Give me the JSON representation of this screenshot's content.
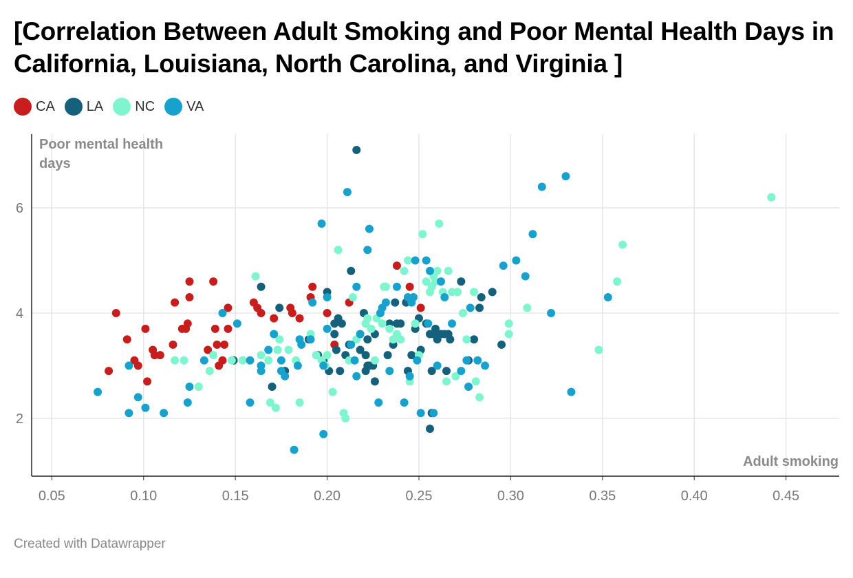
{
  "title": "[Correlation Between Adult Smoking and Poor Mental Health Days in California, Louisiana, North Carolina, and Virginia  ]",
  "footer": "Created with Datawrapper",
  "legend": [
    {
      "label": "CA",
      "color": "#c71e1d"
    },
    {
      "label": "LA",
      "color": "#15607a"
    },
    {
      "label": "NC",
      "color": "#7ff5cf"
    },
    {
      "label": "VA",
      "color": "#18a1cd"
    }
  ],
  "chart_data": {
    "type": "scatter",
    "xlabel": "Adult smoking",
    "ylabel": "Poor mental health days",
    "ylabel_lines": [
      "Poor mental health",
      "days"
    ],
    "xlim": [
      0.039,
      0.479
    ],
    "ylim": [
      0.9,
      7.4
    ],
    "xticks": [
      "0.05",
      "0.10",
      "0.15",
      "0.20",
      "0.25",
      "0.30",
      "0.35",
      "0.40",
      "0.45"
    ],
    "yticks": [
      "2",
      "4",
      "6"
    ],
    "grid": true,
    "legend_position": "top-left",
    "series": [
      {
        "name": "CA",
        "color": "#c71e1d",
        "points": [
          [
            0.081,
            2.9
          ],
          [
            0.085,
            4.0
          ],
          [
            0.091,
            3.5
          ],
          [
            0.095,
            3.1
          ],
          [
            0.097,
            3.0
          ],
          [
            0.101,
            3.7
          ],
          [
            0.102,
            2.7
          ],
          [
            0.105,
            3.3
          ],
          [
            0.106,
            3.2
          ],
          [
            0.109,
            3.2
          ],
          [
            0.116,
            3.4
          ],
          [
            0.117,
            4.2
          ],
          [
            0.121,
            3.7
          ],
          [
            0.123,
            3.7
          ],
          [
            0.124,
            3.8
          ],
          [
            0.125,
            4.3
          ],
          [
            0.125,
            4.6
          ],
          [
            0.135,
            3.3
          ],
          [
            0.138,
            4.6
          ],
          [
            0.139,
            3.7
          ],
          [
            0.14,
            3.4
          ],
          [
            0.141,
            3.0
          ],
          [
            0.143,
            3.1
          ],
          [
            0.144,
            3.4
          ],
          [
            0.146,
            4.1
          ],
          [
            0.146,
            3.7
          ],
          [
            0.149,
            3.1
          ],
          [
            0.16,
            4.2
          ],
          [
            0.162,
            4.1
          ],
          [
            0.164,
            4.0
          ],
          [
            0.171,
            3.9
          ],
          [
            0.18,
            4.1
          ],
          [
            0.181,
            4.0
          ],
          [
            0.185,
            3.9
          ],
          [
            0.191,
            4.3
          ],
          [
            0.192,
            4.5
          ],
          [
            0.2,
            4.0
          ],
          [
            0.204,
            3.4
          ],
          [
            0.212,
            4.2
          ],
          [
            0.238,
            4.9
          ],
          [
            0.245,
            4.5
          ],
          [
            0.251,
            4.1
          ]
        ]
      },
      {
        "name": "LA",
        "color": "#15607a",
        "points": [
          [
            0.149,
            3.1
          ],
          [
            0.164,
            4.5
          ],
          [
            0.17,
            2.6
          ],
          [
            0.174,
            4.1
          ],
          [
            0.177,
            2.9
          ],
          [
            0.19,
            3.5
          ],
          [
            0.195,
            3.2
          ],
          [
            0.198,
            3.1
          ],
          [
            0.2,
            4.4
          ],
          [
            0.201,
            2.9
          ],
          [
            0.204,
            3.6
          ],
          [
            0.205,
            3.3
          ],
          [
            0.206,
            3.9
          ],
          [
            0.207,
            2.9
          ],
          [
            0.208,
            3.8
          ],
          [
            0.21,
            3.2
          ],
          [
            0.212,
            3.4
          ],
          [
            0.213,
            4.8
          ],
          [
            0.216,
            7.1
          ],
          [
            0.218,
            3.3
          ],
          [
            0.22,
            4.0
          ],
          [
            0.221,
            2.9
          ],
          [
            0.222,
            3.5
          ],
          [
            0.223,
            3.0
          ],
          [
            0.225,
            3.0
          ],
          [
            0.226,
            3.6
          ],
          [
            0.226,
            2.7
          ],
          [
            0.233,
            3.2
          ],
          [
            0.234,
            3.8
          ],
          [
            0.236,
            3.4
          ],
          [
            0.237,
            4.2
          ],
          [
            0.238,
            3.8
          ],
          [
            0.24,
            3.8
          ],
          [
            0.244,
            2.9
          ],
          [
            0.246,
            3.2
          ],
          [
            0.248,
            3.7
          ],
          [
            0.25,
            3.9
          ],
          [
            0.251,
            3.3
          ],
          [
            0.254,
            3.8
          ],
          [
            0.256,
            1.8
          ],
          [
            0.256,
            3.6
          ],
          [
            0.257,
            2.9
          ],
          [
            0.258,
            3.6
          ],
          [
            0.259,
            3.7
          ],
          [
            0.26,
            3.5
          ],
          [
            0.262,
            3.6
          ],
          [
            0.264,
            3.6
          ],
          [
            0.266,
            3.6
          ],
          [
            0.265,
            2.9
          ],
          [
            0.267,
            3.5
          ],
          [
            0.273,
            4.6
          ],
          [
            0.277,
            3.1
          ],
          [
            0.28,
            3.5
          ],
          [
            0.283,
            4.1
          ],
          [
            0.284,
            4.3
          ],
          [
            0.29,
            4.4
          ],
          [
            0.295,
            3.4
          ],
          [
            0.257,
            2.1
          ],
          [
            0.243,
            4.2
          ],
          [
            0.222,
            3.0
          ],
          [
            0.221,
            3.2
          ],
          [
            0.204,
            3.8
          ]
        ]
      },
      {
        "name": "NC",
        "color": "#7ff5cf",
        "points": [
          [
            0.117,
            3.1
          ],
          [
            0.122,
            3.1
          ],
          [
            0.13,
            2.6
          ],
          [
            0.136,
            2.9
          ],
          [
            0.138,
            3.2
          ],
          [
            0.148,
            3.1
          ],
          [
            0.154,
            3.1
          ],
          [
            0.161,
            4.7
          ],
          [
            0.164,
            3.2
          ],
          [
            0.168,
            3.1
          ],
          [
            0.169,
            2.3
          ],
          [
            0.172,
            2.2
          ],
          [
            0.173,
            3.3
          ],
          [
            0.174,
            3.5
          ],
          [
            0.179,
            3.3
          ],
          [
            0.183,
            3.1
          ],
          [
            0.185,
            2.3
          ],
          [
            0.186,
            3.4
          ],
          [
            0.191,
            3.6
          ],
          [
            0.194,
            3.2
          ],
          [
            0.197,
            3.1
          ],
          [
            0.199,
            3.0
          ],
          [
            0.2,
            3.2
          ],
          [
            0.203,
            2.5
          ],
          [
            0.206,
            5.2
          ],
          [
            0.209,
            2.1
          ],
          [
            0.21,
            2.0
          ],
          [
            0.212,
            3.1
          ],
          [
            0.214,
            4.3
          ],
          [
            0.216,
            3.5
          ],
          [
            0.218,
            3.6
          ],
          [
            0.221,
            3.8
          ],
          [
            0.222,
            3.9
          ],
          [
            0.224,
            3.7
          ],
          [
            0.226,
            3.1
          ],
          [
            0.227,
            3.9
          ],
          [
            0.23,
            3.8
          ],
          [
            0.231,
            4.5
          ],
          [
            0.232,
            4.5
          ],
          [
            0.234,
            3.7
          ],
          [
            0.236,
            3.5
          ],
          [
            0.238,
            3.6
          ],
          [
            0.24,
            3.5
          ],
          [
            0.242,
            4.8
          ],
          [
            0.244,
            5.0
          ],
          [
            0.245,
            2.7
          ],
          [
            0.247,
            4.3
          ],
          [
            0.248,
            3.8
          ],
          [
            0.25,
            3.2
          ],
          [
            0.252,
            5.5
          ],
          [
            0.254,
            4.6
          ],
          [
            0.256,
            4.4
          ],
          [
            0.257,
            4.5
          ],
          [
            0.258,
            4.7
          ],
          [
            0.259,
            4.6
          ],
          [
            0.26,
            4.8
          ],
          [
            0.261,
            5.7
          ],
          [
            0.263,
            4.4
          ],
          [
            0.265,
            2.7
          ],
          [
            0.266,
            4.8
          ],
          [
            0.268,
            4.4
          ],
          [
            0.27,
            2.8
          ],
          [
            0.271,
            4.4
          ],
          [
            0.274,
            4.0
          ],
          [
            0.276,
            3.5
          ],
          [
            0.28,
            4.4
          ],
          [
            0.281,
            2.7
          ],
          [
            0.283,
            2.4
          ],
          [
            0.299,
            3.8
          ],
          [
            0.299,
            3.6
          ],
          [
            0.309,
            4.1
          ],
          [
            0.348,
            3.3
          ],
          [
            0.358,
            4.6
          ],
          [
            0.361,
            5.3
          ],
          [
            0.442,
            6.2
          ]
        ]
      },
      {
        "name": "VA",
        "color": "#18a1cd",
        "points": [
          [
            0.075,
            2.5
          ],
          [
            0.092,
            3.0
          ],
          [
            0.092,
            2.1
          ],
          [
            0.097,
            2.4
          ],
          [
            0.101,
            2.2
          ],
          [
            0.111,
            2.1
          ],
          [
            0.124,
            2.3
          ],
          [
            0.125,
            2.6
          ],
          [
            0.133,
            3.1
          ],
          [
            0.143,
            4.0
          ],
          [
            0.151,
            3.8
          ],
          [
            0.158,
            2.3
          ],
          [
            0.158,
            3.1
          ],
          [
            0.164,
            3.0
          ],
          [
            0.164,
            2.9
          ],
          [
            0.168,
            3.3
          ],
          [
            0.171,
            3.6
          ],
          [
            0.175,
            2.9
          ],
          [
            0.175,
            3.1
          ],
          [
            0.177,
            2.8
          ],
          [
            0.182,
            1.4
          ],
          [
            0.184,
            3.0
          ],
          [
            0.185,
            3.5
          ],
          [
            0.186,
            3.4
          ],
          [
            0.191,
            3.5
          ],
          [
            0.192,
            4.2
          ],
          [
            0.197,
            5.7
          ],
          [
            0.198,
            3.0
          ],
          [
            0.198,
            1.7
          ],
          [
            0.2,
            3.7
          ],
          [
            0.2,
            4.3
          ],
          [
            0.211,
            6.3
          ],
          [
            0.213,
            3.4
          ],
          [
            0.215,
            3.1
          ],
          [
            0.216,
            4.5
          ],
          [
            0.216,
            2.8
          ],
          [
            0.218,
            3.6
          ],
          [
            0.222,
            5.2
          ],
          [
            0.223,
            5.6
          ],
          [
            0.228,
            2.3
          ],
          [
            0.229,
            4.0
          ],
          [
            0.23,
            4.1
          ],
          [
            0.232,
            4.2
          ],
          [
            0.234,
            2.9
          ],
          [
            0.238,
            4.5
          ],
          [
            0.242,
            2.3
          ],
          [
            0.244,
            4.3
          ],
          [
            0.245,
            2.8
          ],
          [
            0.246,
            4.2
          ],
          [
            0.247,
            4.3
          ],
          [
            0.248,
            5.0
          ],
          [
            0.249,
            3.1
          ],
          [
            0.251,
            2.1
          ],
          [
            0.254,
            5.0
          ],
          [
            0.255,
            3.8
          ],
          [
            0.256,
            4.8
          ],
          [
            0.258,
            2.1
          ],
          [
            0.26,
            3.0
          ],
          [
            0.262,
            4.6
          ],
          [
            0.264,
            4.3
          ],
          [
            0.268,
            3.8
          ],
          [
            0.273,
            2.9
          ],
          [
            0.276,
            3.1
          ],
          [
            0.277,
            2.6
          ],
          [
            0.278,
            4.1
          ],
          [
            0.282,
            3.1
          ],
          [
            0.286,
            3.0
          ],
          [
            0.296,
            4.9
          ],
          [
            0.303,
            5.0
          ],
          [
            0.308,
            4.7
          ],
          [
            0.312,
            5.5
          ],
          [
            0.317,
            6.4
          ],
          [
            0.322,
            4.0
          ],
          [
            0.33,
            6.6
          ],
          [
            0.333,
            2.5
          ],
          [
            0.353,
            4.3
          ]
        ]
      }
    ]
  }
}
